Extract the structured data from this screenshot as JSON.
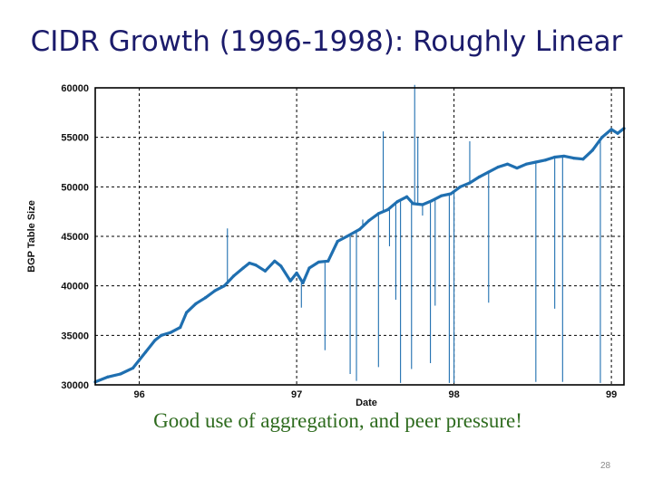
{
  "slide": {
    "title": "CIDR Growth (1996-1998): Roughly Linear",
    "caption": "Good use of aggregation, and peer pressure!",
    "page_number": "28"
  },
  "chart_data": {
    "type": "line",
    "title": "",
    "xlabel": "Date",
    "ylabel": "BGP Table Size",
    "xlim": [
      1995.72,
      1999.08
    ],
    "ylim": [
      30000,
      60000
    ],
    "x_ticks": [
      {
        "value": 1996,
        "label": "96"
      },
      {
        "value": 1997,
        "label": "97"
      },
      {
        "value": 1998,
        "label": "98"
      },
      {
        "value": 1999,
        "label": "99"
      }
    ],
    "y_ticks": [
      {
        "value": 30000,
        "label": "30000"
      },
      {
        "value": 35000,
        "label": "35000"
      },
      {
        "value": 40000,
        "label": "40000"
      },
      {
        "value": 45000,
        "label": "45000"
      },
      {
        "value": 50000,
        "label": "50000"
      },
      {
        "value": 55000,
        "label": "55000"
      },
      {
        "value": 60000,
        "label": "60000"
      }
    ],
    "grid": true,
    "line_color": "#1f6fb0",
    "series": [
      {
        "x": [
          1995.72,
          1995.8,
          1995.88,
          1995.96,
          1996.04,
          1996.1,
          1996.14,
          1996.2,
          1996.26,
          1996.3,
          1996.36,
          1996.42,
          1996.48,
          1996.54,
          1996.6,
          1996.66,
          1996.7,
          1996.74,
          1996.8,
          1996.86,
          1996.9,
          1996.96,
          1997.0,
          1997.04,
          1997.08,
          1997.14,
          1997.2,
          1997.26,
          1997.32,
          1997.4,
          1997.46,
          1997.52,
          1997.58,
          1997.64,
          1997.7,
          1997.74,
          1997.8,
          1997.86,
          1997.92,
          1997.98,
          1998.04,
          1998.1,
          1998.16,
          1998.22,
          1998.28,
          1998.34,
          1998.4,
          1998.46,
          1998.52,
          1998.58,
          1998.64,
          1998.7,
          1998.76,
          1998.82,
          1998.88,
          1998.94,
          1999.0,
          1999.04,
          1999.08
        ],
        "values": [
          30300,
          30800,
          31100,
          31700,
          33300,
          34500,
          35000,
          35300,
          35800,
          37300,
          38200,
          38800,
          39500,
          40000,
          41000,
          41800,
          42300,
          42100,
          41500,
          42500,
          42000,
          40500,
          41300,
          40300,
          41800,
          42400,
          42500,
          44500,
          45000,
          45700,
          46600,
          47300,
          47700,
          48500,
          49000,
          48300,
          48200,
          48600,
          49100,
          49300,
          50000,
          50400,
          51000,
          51500,
          52000,
          52300,
          51900,
          52300,
          52500,
          52700,
          53000,
          53100,
          52900,
          52800,
          53700,
          55000,
          55800,
          55400,
          55900
        ]
      }
    ],
    "spikes": [
      {
        "x": 1996.56,
        "value": 45800
      },
      {
        "x": 1997.03,
        "value": 37800
      },
      {
        "x": 1997.18,
        "value": 33500
      },
      {
        "x": 1997.34,
        "value": 31100
      },
      {
        "x": 1997.38,
        "value": 30400
      },
      {
        "x": 1997.42,
        "value": 46700
      },
      {
        "x": 1997.52,
        "value": 31800
      },
      {
        "x": 1997.55,
        "value": 55600
      },
      {
        "x": 1997.59,
        "value": 44000
      },
      {
        "x": 1997.63,
        "value": 38600
      },
      {
        "x": 1997.66,
        "value": 30200
      },
      {
        "x": 1997.73,
        "value": 31600
      },
      {
        "x": 1997.75,
        "value": 60300
      },
      {
        "x": 1997.77,
        "value": 55000
      },
      {
        "x": 1997.8,
        "value": 47100
      },
      {
        "x": 1997.85,
        "value": 32200
      },
      {
        "x": 1997.88,
        "value": 38000
      },
      {
        "x": 1997.97,
        "value": 30200
      },
      {
        "x": 1998.0,
        "value": 30200
      },
      {
        "x": 1998.1,
        "value": 54600
      },
      {
        "x": 1998.22,
        "value": 38300
      },
      {
        "x": 1998.52,
        "value": 30300
      },
      {
        "x": 1998.64,
        "value": 37700
      },
      {
        "x": 1998.69,
        "value": 30300
      },
      {
        "x": 1998.93,
        "value": 30200
      }
    ]
  }
}
